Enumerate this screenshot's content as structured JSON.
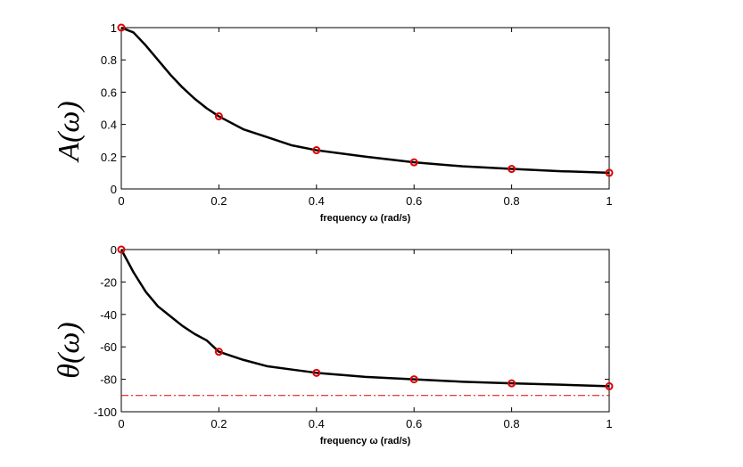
{
  "chart_data": [
    {
      "type": "line",
      "ylabel": "A(ω)",
      "xlabel": "frequency ω (rad/s)",
      "xlim": [
        0,
        1
      ],
      "ylim": [
        0,
        1
      ],
      "x_ticks": [
        0,
        0.2,
        0.4,
        0.6,
        0.8,
        1
      ],
      "x_tick_labels": [
        "0",
        "0.2",
        "0.4",
        "0.6",
        "0.8",
        "1"
      ],
      "y_ticks": [
        0,
        0.2,
        0.4,
        0.6,
        0.8,
        1
      ],
      "y_tick_labels": [
        "0",
        "0.2",
        "0.4",
        "0.6",
        "0.8",
        "1"
      ],
      "grid": false,
      "curve": {
        "color": "#000000",
        "x": [
          0,
          0.025,
          0.05,
          0.075,
          0.1,
          0.125,
          0.15,
          0.175,
          0.2,
          0.25,
          0.3,
          0.35,
          0.4,
          0.5,
          0.6,
          0.7,
          0.8,
          0.9,
          1.0
        ],
        "y": [
          1.0,
          0.97,
          0.89,
          0.8,
          0.71,
          0.63,
          0.56,
          0.5,
          0.45,
          0.37,
          0.32,
          0.27,
          0.24,
          0.2,
          0.165,
          0.14,
          0.124,
          0.11,
          0.1
        ]
      },
      "markers": {
        "color": "#e00000",
        "x": [
          0,
          0.2,
          0.4,
          0.6,
          0.8,
          1.0
        ],
        "y": [
          1.0,
          0.45,
          0.24,
          0.165,
          0.124,
          0.1
        ]
      }
    },
    {
      "type": "line",
      "ylabel": "θ(ω)",
      "xlabel": "frequency ω (rad/s)",
      "xlim": [
        0,
        1
      ],
      "ylim": [
        -100,
        0
      ],
      "x_ticks": [
        0,
        0.2,
        0.4,
        0.6,
        0.8,
        1
      ],
      "x_tick_labels": [
        "0",
        "0.2",
        "0.4",
        "0.6",
        "0.8",
        "1"
      ],
      "y_ticks": [
        -100,
        -80,
        -60,
        -40,
        -20,
        0
      ],
      "y_tick_labels": [
        "-100",
        "-80",
        "-60",
        "-40",
        "-20",
        "0"
      ],
      "grid": false,
      "curve": {
        "color": "#000000",
        "x": [
          0,
          0.025,
          0.05,
          0.075,
          0.1,
          0.125,
          0.15,
          0.175,
          0.2,
          0.25,
          0.3,
          0.35,
          0.4,
          0.5,
          0.6,
          0.7,
          0.8,
          0.9,
          1.0
        ],
        "y": [
          0,
          -14,
          -26,
          -35,
          -41,
          -47,
          -52,
          -56,
          -63,
          -68,
          -72,
          -74,
          -76,
          -78.5,
          -80,
          -81.5,
          -82.5,
          -83.3,
          -84.3
        ]
      },
      "markers": {
        "color": "#e00000",
        "x": [
          0,
          0.2,
          0.4,
          0.6,
          0.8,
          1.0
        ],
        "y": [
          0,
          -63,
          -76,
          -80,
          -82.5,
          -84.3
        ]
      },
      "reference_line": {
        "y": -90,
        "style": "dash-dot",
        "color": "#e00000"
      }
    }
  ]
}
